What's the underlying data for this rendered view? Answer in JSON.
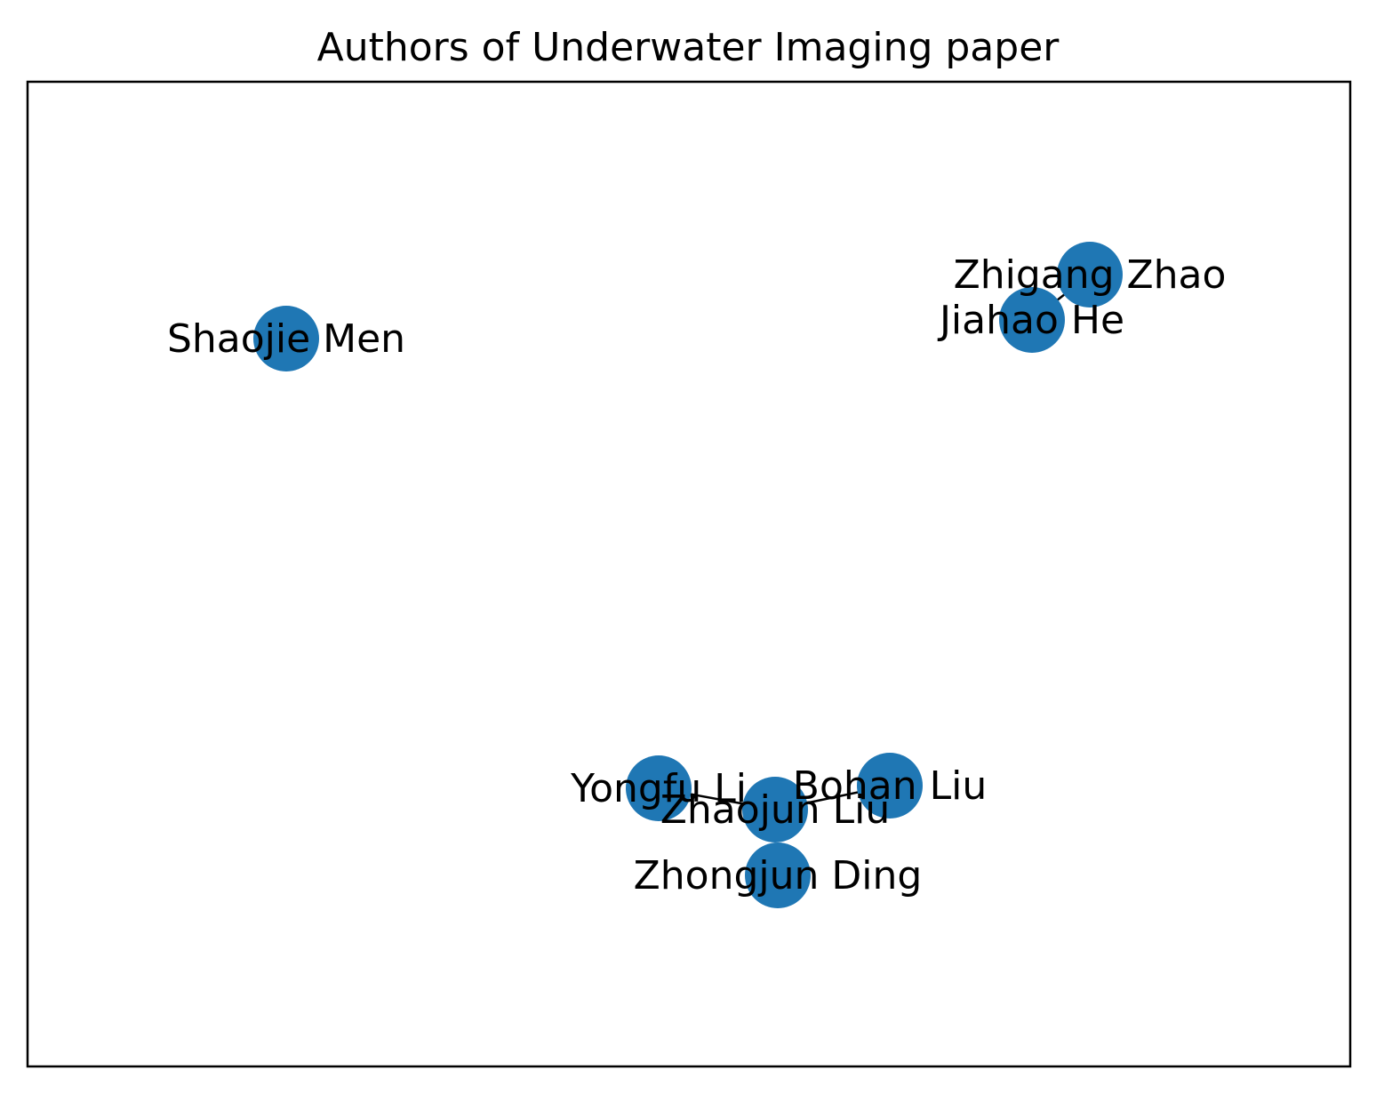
{
  "title": "Authors of Underwater Imaging paper",
  "colors": {
    "node": "#1f77b4",
    "edge": "#000000",
    "frame": "#000000",
    "background": "#ffffff"
  },
  "nodes": [
    {
      "id": "shaojie-men",
      "label": "Shaojie Men"
    },
    {
      "id": "zhigang-zhao",
      "label": "Zhigang Zhao"
    },
    {
      "id": "jiahao-he",
      "label": "Jiahao He"
    },
    {
      "id": "yongfu-li",
      "label": "Yongfu Li"
    },
    {
      "id": "bohan-liu",
      "label": "Bohan Liu"
    },
    {
      "id": "zhaojun-liu",
      "label": "Zhaojun Liu"
    },
    {
      "id": "zhongjun-ding",
      "label": "Zhongjun Ding"
    }
  ],
  "edges": [
    {
      "source": "zhigang-zhao",
      "target": "jiahao-he"
    },
    {
      "source": "yongfu-li",
      "target": "zhaojun-liu"
    },
    {
      "source": "zhaojun-liu",
      "target": "bohan-liu"
    }
  ]
}
